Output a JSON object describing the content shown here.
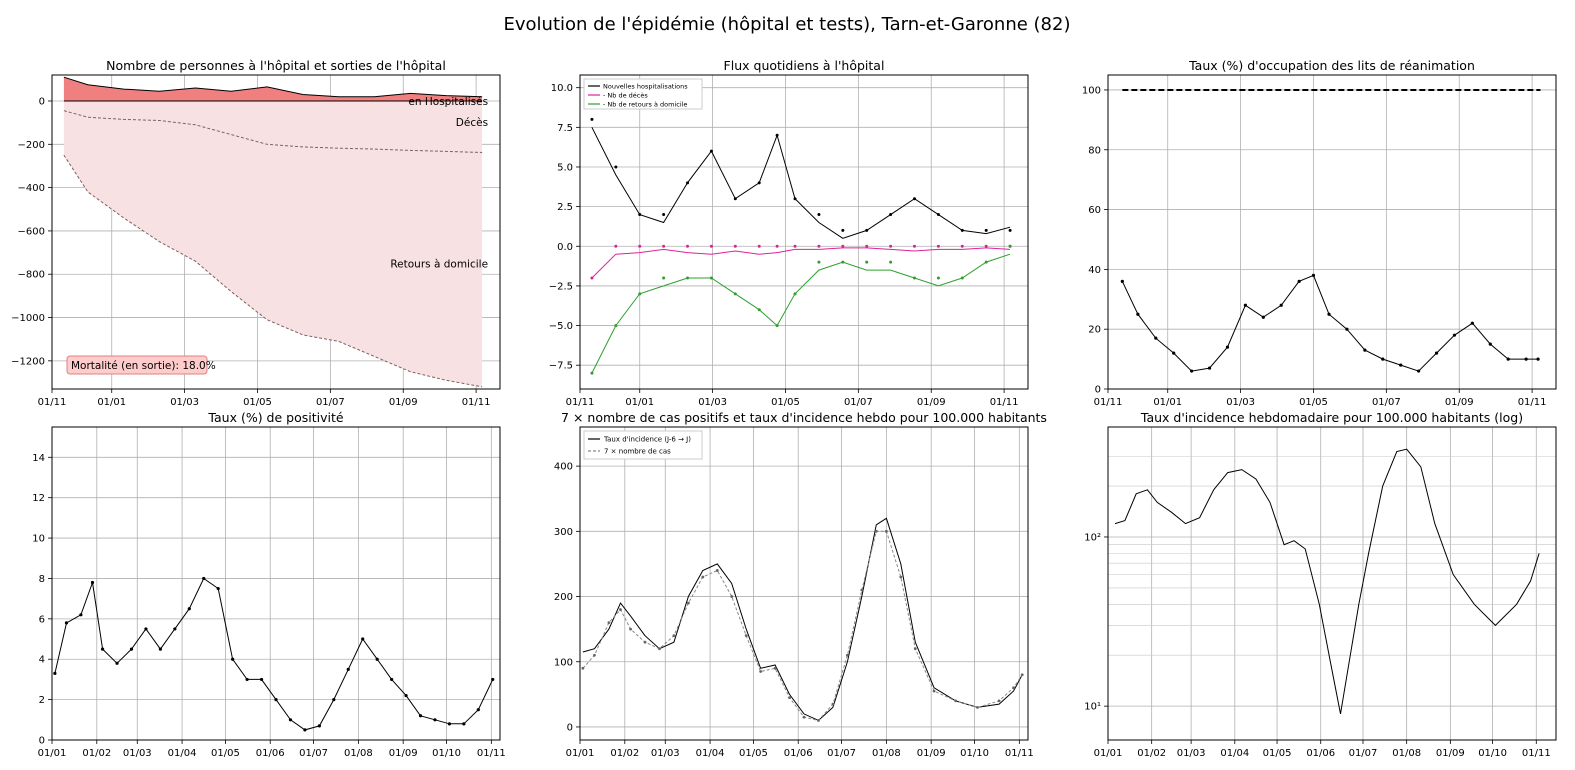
{
  "figure": {
    "title": "Evolution de l'épidémie (hôpital et tests), Tarn-et-Garonne (82)"
  },
  "chart_data": [
    {
      "id": "hospital",
      "type": "area",
      "title": "Nombre de personnes à l'hôpital et sorties de l'hôpital",
      "xlim": [
        0,
        375
      ],
      "ylim": [
        -1330,
        120
      ],
      "yticks": [
        0,
        -200,
        -400,
        -600,
        -800,
        -1000,
        -1200
      ],
      "ytick_labels": [
        "0",
        "−200",
        "−400",
        "−600",
        "−800",
        "−1000",
        "−1200"
      ],
      "xticks": [
        0,
        50,
        111,
        172,
        233,
        294,
        355
      ],
      "xtick_labels": [
        "01/11",
        "01/01",
        "01/03",
        "01/05",
        "01/07",
        "01/09",
        "01/11"
      ],
      "x": [
        10,
        30,
        60,
        90,
        120,
        150,
        180,
        210,
        240,
        270,
        300,
        330,
        360
      ],
      "hospitalises": [
        110,
        75,
        55,
        45,
        60,
        45,
        65,
        30,
        20,
        20,
        35,
        25,
        20
      ],
      "deces": [
        -45,
        -75,
        -85,
        -90,
        -110,
        -155,
        -200,
        -212,
        -218,
        -222,
        -228,
        -233,
        -238
      ],
      "retours": [
        -250,
        -420,
        -540,
        -650,
        -740,
        -880,
        -1010,
        -1080,
        -1110,
        -1180,
        -1250,
        -1290,
        -1320
      ],
      "labels": {
        "hospitalises": "en Hospitalisés",
        "deces": "Décès",
        "retours": "Retours à domicile",
        "mortalite": "Mortalité (en sortie): 18.0%"
      },
      "colors": {
        "hospitalises": "#f08080",
        "sorties": "#f8e1e3",
        "boxface": "#ffcccc",
        "boxedge": "#e08080"
      }
    },
    {
      "id": "flux",
      "type": "line",
      "title": "Flux quotidiens à l'hôpital",
      "xlim": [
        0,
        375
      ],
      "ylim": [
        -9,
        10.8
      ],
      "yticks": [
        10,
        7.5,
        5,
        2.5,
        0,
        -2.5,
        -5,
        -7.5
      ],
      "ytick_labels": [
        "10.0",
        "7.5",
        "5.0",
        "2.5",
        "0.0",
        "−2.5",
        "−5.0",
        "−7.5"
      ],
      "xticks": [
        0,
        50,
        111,
        172,
        233,
        294,
        355
      ],
      "xtick_labels": [
        "01/11",
        "01/01",
        "01/03",
        "01/05",
        "01/07",
        "01/09",
        "01/11"
      ],
      "x": [
        10,
        30,
        50,
        70,
        90,
        110,
        130,
        150,
        165,
        180,
        200,
        220,
        240,
        260,
        280,
        300,
        320,
        340,
        360
      ],
      "series": [
        {
          "name": "Nouvelles hospitalisations",
          "color": "#000000",
          "values": [
            7.5,
            4.5,
            2,
            1.5,
            4,
            6,
            3,
            4,
            7,
            3,
            1.5,
            0.5,
            1,
            2,
            3,
            2,
            1,
            0.8,
            1.2
          ]
        },
        {
          "name": "- Nb de décès",
          "color": "#e0209b",
          "values": [
            -2,
            -0.5,
            -0.4,
            -0.2,
            -0.4,
            -0.5,
            -0.3,
            -0.5,
            -0.4,
            -0.2,
            -0.2,
            -0.1,
            -0.1,
            -0.2,
            -0.3,
            -0.2,
            -0.2,
            -0.1,
            -0.2
          ]
        },
        {
          "name": "- Nb de retours à domicile",
          "color": "#2ca02c",
          "values": [
            -8,
            -5,
            -3,
            -2.5,
            -2,
            -2,
            -3,
            -4,
            -5,
            -3,
            -1.5,
            -1,
            -1.5,
            -1.5,
            -2,
            -2.5,
            -2,
            -1,
            -0.5
          ]
        }
      ]
    },
    {
      "id": "rea",
      "type": "line",
      "title": "Taux (%) d'occupation des lits de réanimation",
      "xlim": [
        0,
        375
      ],
      "ylim": [
        0,
        105
      ],
      "yticks": [
        0,
        20,
        40,
        60,
        80,
        100
      ],
      "ytick_labels": [
        "0",
        "20",
        "40",
        "60",
        "80",
        "100"
      ],
      "xticks": [
        0,
        50,
        111,
        172,
        233,
        294,
        355
      ],
      "xtick_labels": [
        "01/11",
        "01/01",
        "01/03",
        "01/05",
        "01/07",
        "01/09",
        "01/11"
      ],
      "x": [
        12,
        25,
        40,
        55,
        70,
        85,
        100,
        115,
        130,
        145,
        160,
        172,
        185,
        200,
        215,
        230,
        245,
        260,
        275,
        290,
        305,
        320,
        335,
        350,
        360
      ],
      "values": [
        36,
        25,
        17,
        12,
        6,
        7,
        14,
        28,
        24,
        28,
        36,
        38,
        25,
        20,
        13,
        10,
        8,
        6,
        12,
        18,
        22,
        15,
        10,
        10,
        10
      ],
      "capacity": 100
    },
    {
      "id": "positivite",
      "type": "line",
      "title": "Taux (%) de positivité",
      "xlim": [
        0,
        310
      ],
      "ylim": [
        0,
        15.5
      ],
      "yticks": [
        0,
        2,
        4,
        6,
        8,
        10,
        12,
        14
      ],
      "ytick_labels": [
        "0",
        "2",
        "4",
        "6",
        "8",
        "10",
        "12",
        "14"
      ],
      "xticks": [
        0,
        31,
        59,
        90,
        120,
        151,
        181,
        212,
        243,
        273,
        304
      ],
      "xtick_labels": [
        "01/01",
        "01/02",
        "01/03",
        "01/04",
        "01/05",
        "01/06",
        "01/07",
        "01/08",
        "01/09",
        "01/10",
        "01/11"
      ],
      "x": [
        2,
        10,
        20,
        28,
        35,
        45,
        55,
        65,
        75,
        85,
        95,
        105,
        115,
        125,
        135,
        145,
        155,
        165,
        175,
        185,
        195,
        205,
        215,
        225,
        235,
        245,
        255,
        265,
        275,
        285,
        295,
        305
      ],
      "values": [
        3.3,
        5.8,
        6.2,
        7.8,
        4.5,
        3.8,
        4.5,
        5.5,
        4.5,
        5.5,
        6.5,
        8,
        7.5,
        4,
        3,
        3,
        2,
        1,
        0.5,
        0.7,
        2,
        3.5,
        5,
        4,
        3,
        2.2,
        1.2,
        1,
        0.8,
        0.8,
        1.5,
        3
      ]
    },
    {
      "id": "incidence",
      "type": "line",
      "title": "7 × nombre de cas positifs et taux d'incidence hebdo pour 100.000 habitants",
      "xlim": [
        0,
        310
      ],
      "ylim": [
        -20,
        460
      ],
      "yticks": [
        0,
        100,
        200,
        300,
        400
      ],
      "ytick_labels": [
        "0",
        "100",
        "200",
        "300",
        "400"
      ],
      "xticks": [
        0,
        31,
        59,
        90,
        120,
        151,
        181,
        212,
        243,
        273,
        304
      ],
      "xtick_labels": [
        "01/01",
        "01/02",
        "01/03",
        "01/04",
        "01/05",
        "01/06",
        "01/07",
        "01/08",
        "01/09",
        "01/10",
        "01/11"
      ],
      "x": [
        2,
        10,
        20,
        28,
        35,
        45,
        55,
        65,
        75,
        85,
        95,
        105,
        115,
        125,
        135,
        145,
        155,
        165,
        175,
        185,
        195,
        205,
        212,
        222,
        232,
        245,
        260,
        275,
        290,
        300,
        306
      ],
      "series": [
        {
          "name": "Taux d'incidence (J-6 → J)",
          "color": "#000000",
          "values": [
            115,
            120,
            150,
            190,
            170,
            140,
            120,
            130,
            200,
            240,
            250,
            220,
            150,
            90,
            95,
            50,
            20,
            10,
            30,
            100,
            200,
            310,
            320,
            250,
            130,
            60,
            40,
            30,
            35,
            55,
            80
          ]
        },
        {
          "name": "7 × nombre de cas",
          "color": "#888888",
          "values": [
            90,
            110,
            160,
            180,
            150,
            130,
            120,
            140,
            190,
            230,
            240,
            200,
            140,
            85,
            90,
            45,
            15,
            10,
            35,
            110,
            210,
            300,
            300,
            230,
            120,
            55,
            40,
            30,
            40,
            60,
            80
          ]
        }
      ]
    },
    {
      "id": "incidence_log",
      "type": "line",
      "title": "Taux d'incidence hebdomadaire pour 100.000 habitants (log)",
      "xlim": [
        0,
        318
      ],
      "ylim_log10": [
        0.8,
        2.65
      ],
      "yticks": [
        10,
        100
      ],
      "ytick_labels": [
        "10¹",
        "10²"
      ],
      "xticks": [
        0,
        31,
        59,
        90,
        120,
        151,
        181,
        212,
        243,
        273,
        304
      ],
      "xtick_labels": [
        "01/01",
        "01/02",
        "01/03",
        "01/04",
        "01/05",
        "01/06",
        "01/07",
        "01/08",
        "01/09",
        "01/10",
        "01/11"
      ],
      "x": [
        5,
        12,
        20,
        28,
        35,
        45,
        55,
        65,
        75,
        85,
        95,
        105,
        115,
        125,
        132,
        140,
        150,
        158,
        165,
        172,
        178,
        185,
        195,
        205,
        212,
        222,
        232,
        245,
        260,
        275,
        290,
        300,
        306
      ],
      "values": [
        120,
        125,
        180,
        190,
        160,
        140,
        120,
        130,
        190,
        240,
        250,
        220,
        160,
        90,
        95,
        85,
        40,
        18,
        9,
        20,
        40,
        80,
        200,
        320,
        330,
        260,
        120,
        60,
        40,
        30,
        40,
        55,
        80
      ]
    }
  ]
}
